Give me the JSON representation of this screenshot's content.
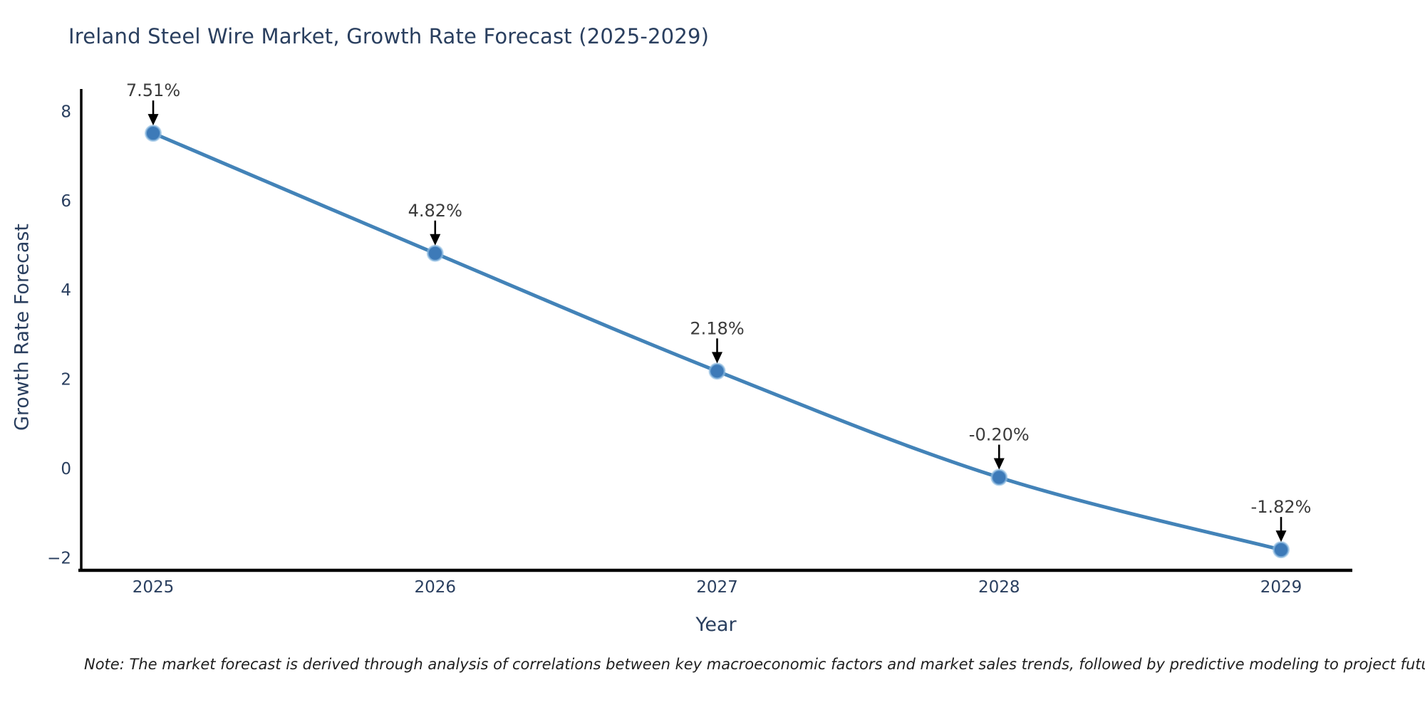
{
  "title": "Ireland Steel Wire Market, Growth Rate Forecast (2025-2029)",
  "note": "Note: The market forecast is derived through analysis of correlations between key macroeconomic factors and market sales trends, followed by predictive modeling to project future sales",
  "chart_data": {
    "type": "line",
    "title": "Ireland Steel Wire Market, Growth Rate Forecast (2025-2029)",
    "xlabel": "Year",
    "ylabel": "Growth Rate Forecast",
    "x": [
      2025,
      2026,
      2027,
      2028,
      2029
    ],
    "values": [
      7.51,
      4.82,
      2.18,
      -0.2,
      -1.82
    ],
    "point_labels": [
      "7.51%",
      "4.82%",
      "2.18%",
      "-0.20%",
      "-1.82%"
    ],
    "series_name": "Growth Rate Forecast",
    "line_shape": "spline",
    "markers": true,
    "grid": false,
    "legend_position": "none",
    "xticks": [
      2025,
      2026,
      2027,
      2028,
      2029
    ],
    "xtick_labels": [
      "2025",
      "2026",
      "2027",
      "2028",
      "2029"
    ],
    "yticks": [
      8,
      6,
      4,
      2,
      0,
      -2
    ],
    "ytick_labels": [
      "8",
      "6",
      "4",
      "2",
      "0",
      "−2"
    ],
    "xlim": [
      2024.74,
      2029.25
    ],
    "ylim": [
      -2.28,
      8.5
    ],
    "colors": {
      "line": "#4383b8",
      "marker_fill": "#3d7ab8",
      "marker_halo": "#8fbde2",
      "arrow": "#000000",
      "spine": "#000000",
      "title_text": "#2a3f5f",
      "axis_text": "#2a3f5f",
      "annotation_text": "#3b3b3b",
      "background": "#ffffff"
    }
  }
}
